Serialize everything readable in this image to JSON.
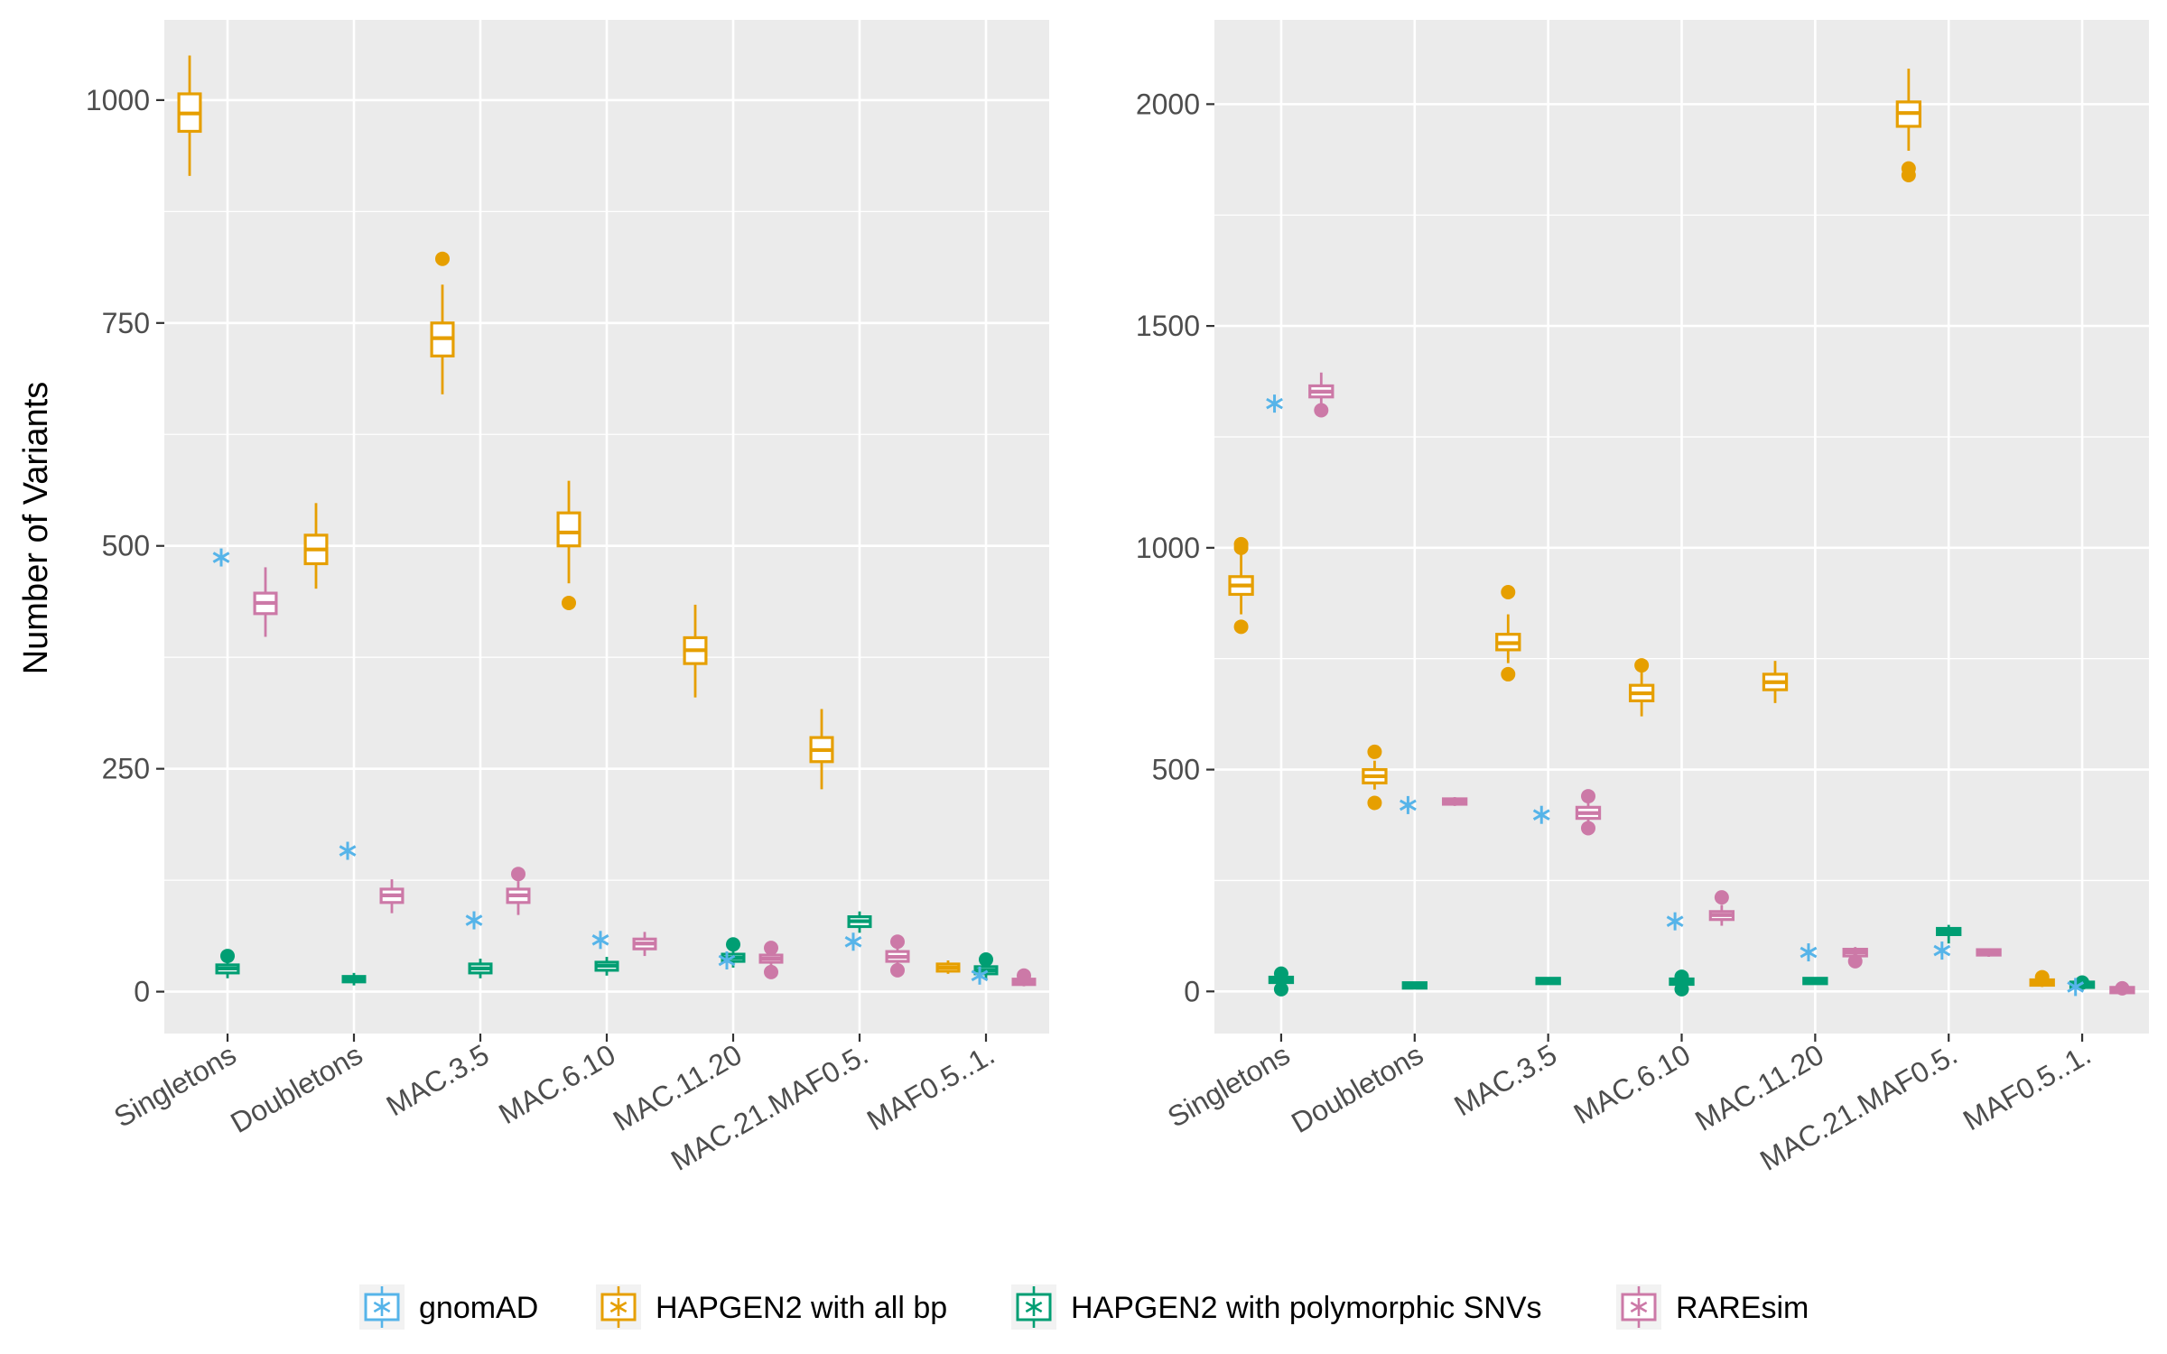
{
  "colors": {
    "gnomAD": "#56B4E9",
    "HAPGEN2 with all bp": "#E69F00",
    "HAPGEN2 with polymorphic SNVs": "#009E73",
    "RAREsim": "#CC79A7",
    "panel_background": "#EBEBEB",
    "gridline": "#FFFFFF"
  },
  "legend": {
    "position": "bottom",
    "entries": [
      {
        "label": "gnomAD",
        "color": "#56B4E9",
        "marker": "asterisk-icon"
      },
      {
        "label": "HAPGEN2 with all bp",
        "color": "#E69F00",
        "marker": "asterisk-icon"
      },
      {
        "label": "HAPGEN2 with polymorphic SNVs",
        "color": "#009E73",
        "marker": "asterisk-icon"
      },
      {
        "label": "RAREsim",
        "color": "#CC79A7",
        "marker": "asterisk-icon"
      }
    ]
  },
  "chart_data": [
    {
      "type": "boxplot",
      "ylabel": "Number of Variants",
      "xlabel": "",
      "categories": [
        "Singletons",
        "Doubletons",
        "MAC.3.5",
        "MAC.6.10",
        "MAC.11.20",
        "MAC.21.MAF0.5.",
        "MAF0.5..1."
      ],
      "ylim": [
        -47,
        1090
      ],
      "yticks": [
        0,
        250,
        500,
        750,
        1000
      ],
      "grid": true,
      "gnomAD": [
        487,
        158,
        80,
        58,
        35,
        56,
        18
      ],
      "series": [
        {
          "name": "HAPGEN2 with all bp",
          "boxes": [
            {
              "min": 915,
              "q1": 965,
              "median": 985,
              "q3": 1007,
              "max": 1050,
              "outliers": []
            },
            {
              "min": 452,
              "q1": 480,
              "median": 496,
              "q3": 512,
              "max": 548,
              "outliers": []
            },
            {
              "min": 670,
              "q1": 713,
              "median": 733,
              "q3": 750,
              "max": 793,
              "outliers": [
                822
              ]
            },
            {
              "min": 458,
              "q1": 500,
              "median": 515,
              "q3": 537,
              "max": 573,
              "outliers": [
                436
              ]
            },
            {
              "min": 330,
              "q1": 368,
              "median": 383,
              "q3": 397,
              "max": 434,
              "outliers": []
            },
            {
              "min": 227,
              "q1": 258,
              "median": 271,
              "q3": 285,
              "max": 317,
              "outliers": []
            },
            {
              "min": 20,
              "q1": 23,
              "median": 27,
              "q3": 31,
              "max": 35,
              "outliers": []
            }
          ]
        },
        {
          "name": "HAPGEN2 with polymorphic SNVs",
          "boxes": [
            {
              "min": 15,
              "q1": 21,
              "median": 26,
              "q3": 30,
              "max": 36,
              "outliers": [
                40
              ]
            },
            {
              "min": 7,
              "q1": 11,
              "median": 14,
              "q3": 17,
              "max": 21,
              "outliers": []
            },
            {
              "min": 15,
              "q1": 21,
              "median": 26,
              "q3": 31,
              "max": 37,
              "outliers": []
            },
            {
              "min": 18,
              "q1": 24,
              "median": 29,
              "q3": 33,
              "max": 39,
              "outliers": []
            },
            {
              "min": 27,
              "q1": 34,
              "median": 38,
              "q3": 42,
              "max": 48,
              "outliers": [
                53
              ]
            },
            {
              "min": 66,
              "q1": 73,
              "median": 79,
              "q3": 84,
              "max": 90,
              "outliers": []
            },
            {
              "min": 14,
              "q1": 20,
              "median": 24,
              "q3": 28,
              "max": 33,
              "outliers": [
                36
              ]
            }
          ]
        },
        {
          "name": "RAREsim",
          "boxes": [
            {
              "min": 398,
              "q1": 424,
              "median": 436,
              "q3": 447,
              "max": 476,
              "outliers": []
            },
            {
              "min": 88,
              "q1": 100,
              "median": 108,
              "q3": 115,
              "max": 126,
              "outliers": []
            },
            {
              "min": 86,
              "q1": 100,
              "median": 108,
              "q3": 115,
              "max": 124,
              "outliers": [
                132
              ]
            },
            {
              "min": 40,
              "q1": 48,
              "median": 54,
              "q3": 59,
              "max": 67,
              "outliers": []
            },
            {
              "min": 28,
              "q1": 33,
              "median": 37,
              "q3": 41,
              "max": 46,
              "outliers": [
                49,
                22
              ]
            },
            {
              "min": 29,
              "q1": 34,
              "median": 39,
              "q3": 45,
              "max": 50,
              "outliers": [
                56,
                24
              ]
            },
            {
              "min": 6,
              "q1": 9,
              "median": 11,
              "q3": 13,
              "max": 16,
              "outliers": [
                18
              ]
            }
          ]
        }
      ]
    },
    {
      "type": "boxplot",
      "ylabel": "",
      "xlabel": "",
      "categories": [
        "Singletons",
        "Doubletons",
        "MAC.3.5",
        "MAC.6.10",
        "MAC.11.20",
        "MAC.21.MAF0.5.",
        "MAF0.5..1."
      ],
      "ylim": [
        -95,
        2190
      ],
      "yticks": [
        0,
        500,
        1000,
        1500,
        2000
      ],
      "grid": true,
      "gnomAD": [
        1325,
        420,
        398,
        158,
        88,
        92,
        10
      ],
      "series": [
        {
          "name": "HAPGEN2 with all bp",
          "boxes": [
            {
              "min": 850,
              "q1": 895,
              "median": 915,
              "q3": 935,
              "max": 985,
              "outliers": [
                1008,
                1000,
                822
              ]
            },
            {
              "min": 455,
              "q1": 470,
              "median": 485,
              "q3": 500,
              "max": 520,
              "outliers": [
                540,
                425
              ]
            },
            {
              "min": 740,
              "q1": 770,
              "median": 785,
              "q3": 805,
              "max": 850,
              "outliers": [
                900,
                715
              ]
            },
            {
              "min": 620,
              "q1": 655,
              "median": 672,
              "q3": 690,
              "max": 720,
              "outliers": [
                735
              ]
            },
            {
              "min": 650,
              "q1": 680,
              "median": 697,
              "q3": 715,
              "max": 745,
              "outliers": []
            },
            {
              "min": 1895,
              "q1": 1950,
              "median": 1980,
              "q3": 2005,
              "max": 2080,
              "outliers": [
                1855,
                1840
              ]
            },
            {
              "min": 10,
              "q1": 16,
              "median": 20,
              "q3": 24,
              "max": 30,
              "outliers": [
                32
              ]
            }
          ]
        },
        {
          "name": "HAPGEN2 with polymorphic SNVs",
          "boxes": [
            {
              "min": 15,
              "q1": 22,
              "median": 26,
              "q3": 30,
              "max": 38,
              "outliers": [
                40,
                5
              ]
            },
            {
              "min": 8,
              "q1": 11,
              "median": 14,
              "q3": 16,
              "max": 20,
              "outliers": []
            },
            {
              "min": 16,
              "q1": 20,
              "median": 24,
              "q3": 27,
              "max": 32,
              "outliers": []
            },
            {
              "min": 12,
              "q1": 18,
              "median": 22,
              "q3": 26,
              "max": 32,
              "outliers": [
                33,
                5
              ]
            },
            {
              "min": 16,
              "q1": 20,
              "median": 24,
              "q3": 27,
              "max": 32,
              "outliers": []
            },
            {
              "min": 108,
              "q1": 128,
              "median": 135,
              "q3": 142,
              "max": 150,
              "outliers": []
            },
            {
              "min": 8,
              "q1": 12,
              "median": 15,
              "q3": 18,
              "max": 22,
              "outliers": [
                20
              ]
            }
          ]
        },
        {
          "name": "RAREsim",
          "boxes": [
            {
              "min": 1320,
              "q1": 1340,
              "median": 1352,
              "q3": 1365,
              "max": 1395,
              "outliers": [
                1310
              ]
            },
            {
              "min": 418,
              "q1": 424,
              "median": 428,
              "q3": 432,
              "max": 438,
              "outliers": []
            },
            {
              "min": 380,
              "q1": 390,
              "median": 402,
              "q3": 415,
              "max": 425,
              "outliers": [
                440,
                368
              ]
            },
            {
              "min": 148,
              "q1": 162,
              "median": 172,
              "q3": 180,
              "max": 195,
              "outliers": [
                212
              ]
            },
            {
              "min": 72,
              "q1": 80,
              "median": 88,
              "q3": 95,
              "max": 100,
              "outliers": [
                68
              ]
            },
            {
              "min": 78,
              "q1": 84,
              "median": 88,
              "q3": 92,
              "max": 96,
              "outliers": []
            },
            {
              "min": -2,
              "q1": 1,
              "median": 3,
              "q3": 5,
              "max": 8,
              "outliers": [
                7
              ]
            }
          ]
        }
      ]
    }
  ]
}
